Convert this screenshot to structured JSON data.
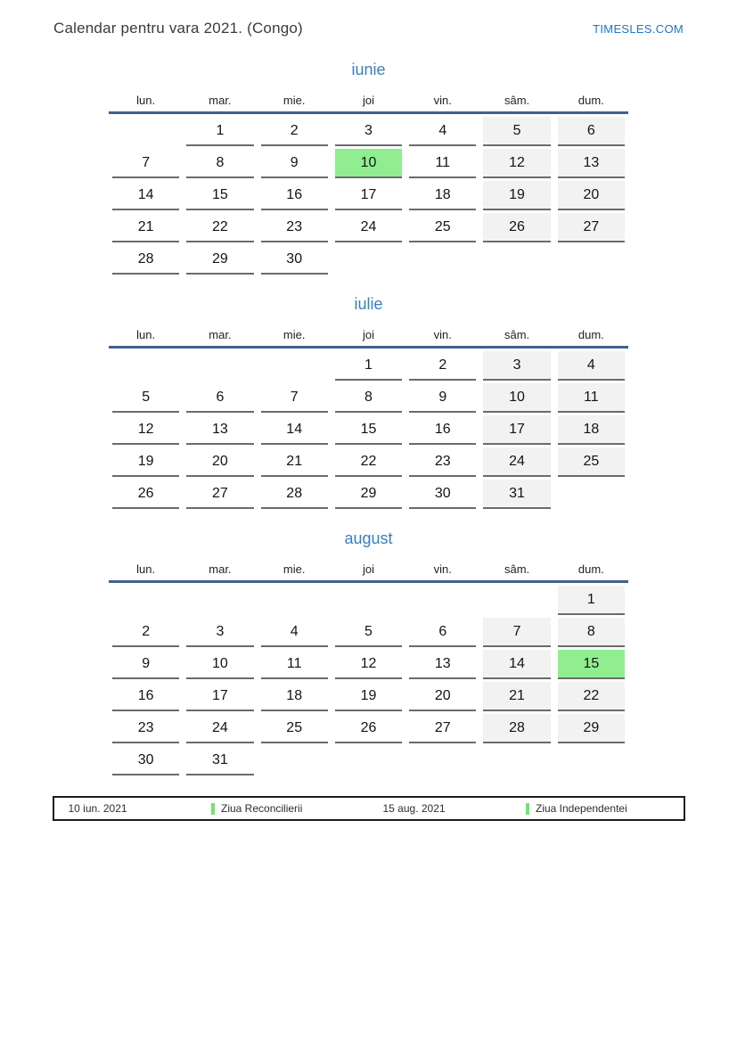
{
  "header": {
    "title": "Calendar pentru vara 2021. (Congo)",
    "brand": "TIMESLES.COM"
  },
  "weekdays": [
    "lun.",
    "mar.",
    "mie.",
    "joi",
    "vin.",
    "sâm.",
    "dum."
  ],
  "months": [
    {
      "name": "iunie",
      "highlight": "10",
      "weeks": [
        [
          "",
          "1",
          "2",
          "3",
          "4",
          "5",
          "6"
        ],
        [
          "7",
          "8",
          "9",
          "10",
          "11",
          "12",
          "13"
        ],
        [
          "14",
          "15",
          "16",
          "17",
          "18",
          "19",
          "20"
        ],
        [
          "21",
          "22",
          "23",
          "24",
          "25",
          "26",
          "27"
        ],
        [
          "28",
          "29",
          "30",
          "",
          "",
          "",
          ""
        ]
      ]
    },
    {
      "name": "iulie",
      "highlight": "",
      "weeks": [
        [
          "",
          "",
          "",
          "1",
          "2",
          "3",
          "4"
        ],
        [
          "5",
          "6",
          "7",
          "8",
          "9",
          "10",
          "11"
        ],
        [
          "12",
          "13",
          "14",
          "15",
          "16",
          "17",
          "18"
        ],
        [
          "19",
          "20",
          "21",
          "22",
          "23",
          "24",
          "25"
        ],
        [
          "26",
          "27",
          "28",
          "29",
          "30",
          "31",
          ""
        ]
      ]
    },
    {
      "name": "august",
      "highlight": "15",
      "weeks": [
        [
          "",
          "",
          "",
          "",
          "",
          "",
          "1"
        ],
        [
          "2",
          "3",
          "4",
          "5",
          "6",
          "7",
          "8"
        ],
        [
          "9",
          "10",
          "11",
          "12",
          "13",
          "14",
          "15"
        ],
        [
          "16",
          "17",
          "18",
          "19",
          "20",
          "21",
          "22"
        ],
        [
          "23",
          "24",
          "25",
          "26",
          "27",
          "28",
          "29"
        ],
        [
          "30",
          "31",
          "",
          "",
          "",
          "",
          ""
        ]
      ]
    }
  ],
  "legend": [
    {
      "date": "10 iun. 2021",
      "label": "Ziua Reconcilierii"
    },
    {
      "date": "15 aug. 2021",
      "label": "Ziua Independentei"
    }
  ],
  "colors": {
    "accent_blue": "#3a7ebf",
    "rule_blue": "#41618c",
    "link_blue": "#2274cc",
    "weekend_bg": "#f2f2f2",
    "holiday_green": "#90ee90",
    "legend_marker_green": "#70e570",
    "underline_gray": "#6b6b6b"
  }
}
